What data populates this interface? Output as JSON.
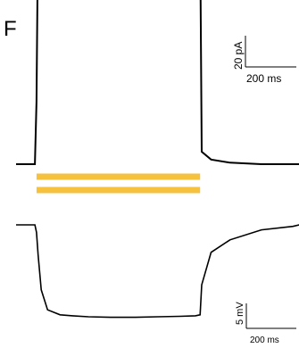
{
  "panel_label": "F",
  "colors": {
    "trace": "#000000",
    "stimulus_bar": "#F6C23E"
  },
  "chart_data": [
    {
      "type": "line",
      "name": "current",
      "scale_bar": {
        "y_label": "20 pA",
        "x_label": "200 ms",
        "y_value": 20,
        "x_value": 200
      },
      "x": [
        0,
        60,
        65,
        70,
        80,
        100,
        140,
        180,
        230,
        300,
        380,
        450,
        520,
        570,
        585,
        590,
        620,
        680,
        780,
        880,
        900
      ],
      "y": [
        0,
        0,
        40,
        155,
        160,
        147,
        150,
        152,
        154,
        156,
        157,
        155,
        154,
        153,
        150,
        8,
        3,
        1,
        0,
        0,
        0
      ]
    },
    {
      "type": "line",
      "name": "voltage",
      "scale_bar": {
        "y_label": "5 mV",
        "x_label": "200 ms",
        "y_value": 5,
        "x_value": 200
      },
      "x": [
        0,
        60,
        65,
        70,
        80,
        100,
        140,
        180,
        230,
        300,
        380,
        450,
        520,
        570,
        585,
        590,
        620,
        680,
        780,
        880,
        900
      ],
      "y": [
        0,
        0,
        -1.5,
        -6,
        -13,
        -17,
        -18,
        -18.2,
        -18.4,
        -18.5,
        -18.5,
        -18.4,
        -18.3,
        -18.2,
        -18,
        -12,
        -5.5,
        -3,
        -1,
        -0.3,
        0
      ]
    }
  ],
  "stimulus_bars": [
    {
      "start": 65,
      "end": 585
    },
    {
      "start": 65,
      "end": 585
    }
  ]
}
